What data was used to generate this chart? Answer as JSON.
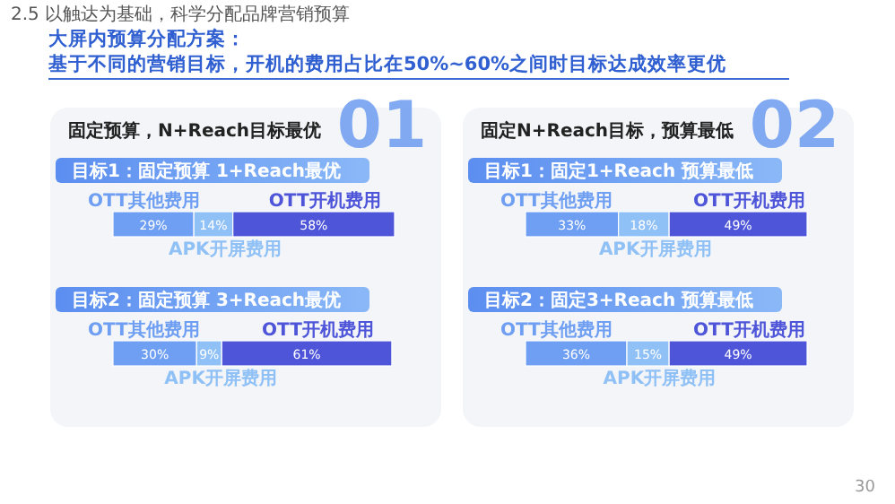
{
  "chart_data": [
    {
      "type": "other",
      "title": "大屏内预算分配方案：",
      "subtitle": "基于不同的营销目标，开机的费用占比在50%~60%之间时目标达成效率更优",
      "annotations": [
        "2.5 以触达为基础，科学分配品牌营销预算",
        "30"
      ]
    },
    {
      "type": "bar",
      "orientation": "horizontal",
      "stacked": true,
      "title": "固定预算，N+Reach目标最优",
      "annotations": [
        "01"
      ],
      "categories": [
        "目标1：固定预算 1+Reach最优",
        "目标2：固定预算 3+Reach最优"
      ],
      "series": [
        {
          "name": "OTT其他费用",
          "color": "#6f9ff2",
          "values": [
            29,
            30
          ],
          "value_labels": [
            "29%",
            "30%"
          ]
        },
        {
          "name": "APK开屏费用",
          "color": "#8fc0f6",
          "values": [
            14,
            9
          ],
          "value_labels": [
            "14%",
            "9%"
          ]
        },
        {
          "name": "OTT开机费用",
          "color": "#4e55d9",
          "values": [
            58,
            61
          ],
          "value_labels": [
            "58%",
            "61%"
          ]
        }
      ]
    },
    {
      "type": "bar",
      "orientation": "horizontal",
      "stacked": true,
      "title": "固定N+Reach目标，预算最低",
      "annotations": [
        "02"
      ],
      "categories": [
        "目标1：固定1+Reach 预算最低",
        "目标2：固定3+Reach 预算最低"
      ],
      "series": [
        {
          "name": "OTT其他费用",
          "color": "#6f9ff2",
          "values": [
            33,
            36
          ],
          "value_labels": [
            "33%",
            "36%"
          ]
        },
        {
          "name": "APK开屏费用",
          "color": "#8fc0f6",
          "values": [
            18,
            15
          ],
          "value_labels": [
            "18%",
            "15%"
          ]
        },
        {
          "name": "OTT开机费用",
          "color": "#4e55d9",
          "values": [
            49,
            49
          ],
          "value_labels": [
            "49%",
            "49%"
          ]
        }
      ]
    }
  ]
}
